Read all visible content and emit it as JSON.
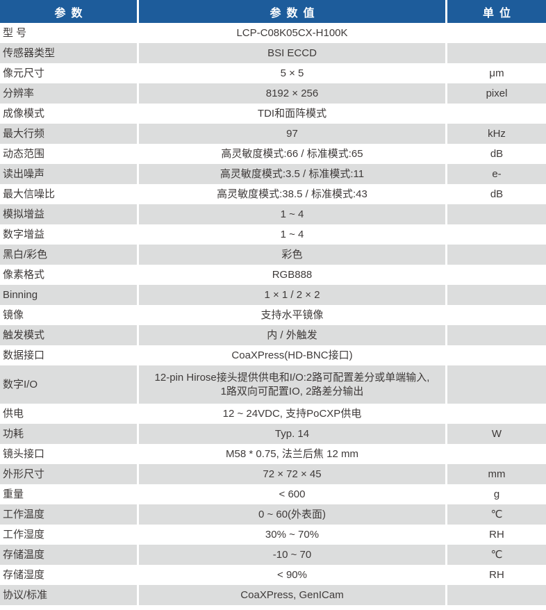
{
  "colors": {
    "header_bg": "#1D5C9B",
    "alt_row_bg": "#DCDDDD",
    "text": "#3E3A39",
    "header_text": "#FFFFFF"
  },
  "header": {
    "param": "参数",
    "value": "参数值",
    "unit": "单位"
  },
  "rows": [
    {
      "param": "型 号",
      "value": "LCP-C08K05CX-H100K",
      "unit": ""
    },
    {
      "param": "传感器类型",
      "value": "BSI ECCD",
      "unit": ""
    },
    {
      "param": "像元尺寸",
      "value": "5 × 5",
      "unit": "μm"
    },
    {
      "param": "分辨率",
      "value": "8192 × 256",
      "unit": "pixel"
    },
    {
      "param": "成像模式",
      "value": "TDI和面阵模式",
      "unit": ""
    },
    {
      "param": "最大行频",
      "value": "97",
      "unit": "kHz"
    },
    {
      "param": "动态范围",
      "value": "高灵敏度模式:66 / 标准模式:65",
      "unit": "dB"
    },
    {
      "param": "读出噪声",
      "value": "高灵敏度模式:3.5 / 标准模式:11",
      "unit": "e-"
    },
    {
      "param": "最大信噪比",
      "value": "高灵敏度模式:38.5 / 标准模式:43",
      "unit": "dB"
    },
    {
      "param": "模拟增益",
      "value": "1 ~ 4",
      "unit": ""
    },
    {
      "param": "数字增益",
      "value": "1 ~ 4",
      "unit": ""
    },
    {
      "param": "黑白/彩色",
      "value": "彩色",
      "unit": ""
    },
    {
      "param": "像素格式",
      "value": "RGB888",
      "unit": ""
    },
    {
      "param": "Binning",
      "value": "1 × 1 / 2 × 2",
      "unit": ""
    },
    {
      "param": "镜像",
      "value": "支持水平镜像",
      "unit": ""
    },
    {
      "param": "触发模式",
      "value": "内 / 外触发",
      "unit": ""
    },
    {
      "param": "数据接口",
      "value": "CoaXPress(HD-BNC接口)",
      "unit": ""
    },
    {
      "param": "数字I/O",
      "value": "12-pin Hirose接头提供供电和I/O:2路可配置差分或单端输入,\n1路双向可配置IO, 2路差分输出",
      "unit": "",
      "tall": true
    },
    {
      "param": "供电",
      "value": "12 ~ 24VDC, 支持PoCXP供电",
      "unit": ""
    },
    {
      "param": "功耗",
      "value": "Typ. 14",
      "unit": "W"
    },
    {
      "param": "镜头接口",
      "value": "M58 * 0.75, 法兰后焦 12 mm",
      "unit": ""
    },
    {
      "param": "外形尺寸",
      "value": "72 × 72 × 45",
      "unit": "mm"
    },
    {
      "param": "重量",
      "value": "< 600",
      "unit": "g"
    },
    {
      "param": "工作温度",
      "value": "0 ~ 60(外表面)",
      "unit": "℃"
    },
    {
      "param": "工作湿度",
      "value": "30% ~ 70%",
      "unit": "RH"
    },
    {
      "param": "存储温度",
      "value": "-10 ~ 70",
      "unit": "℃"
    },
    {
      "param": "存储湿度",
      "value": "< 90%",
      "unit": "RH"
    },
    {
      "param": "协议/标准",
      "value": "CoaXPress, GenICam",
      "unit": ""
    }
  ]
}
